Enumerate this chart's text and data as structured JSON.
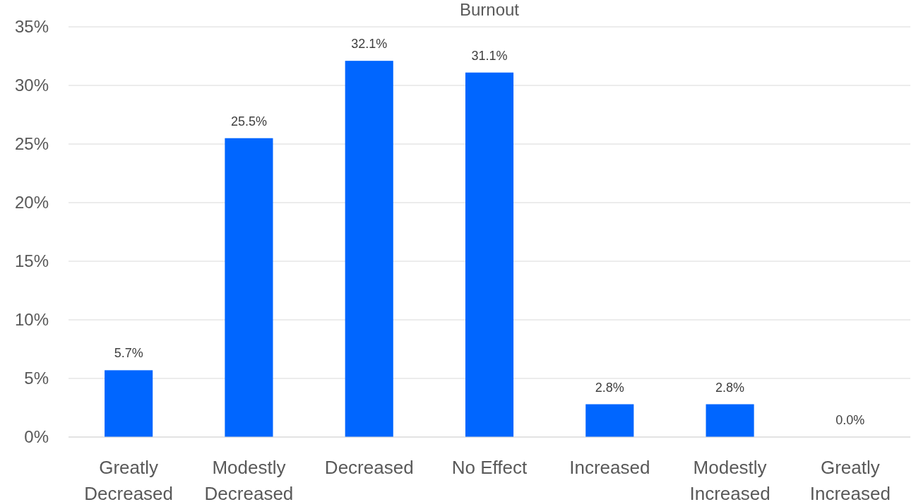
{
  "chart_data": {
    "type": "bar",
    "title": "Burnout",
    "categories": [
      "Greatly Decreased",
      "Modestly Decreased",
      "Decreased",
      "No Effect",
      "Increased",
      "Modestly Increased",
      "Greatly Increased"
    ],
    "values": [
      5.7,
      25.5,
      32.1,
      31.1,
      2.8,
      2.8,
      0.0
    ],
    "value_labels": [
      "5.7%",
      "25.5%",
      "32.1%",
      "31.1%",
      "2.8%",
      "2.8%",
      "0.0%"
    ],
    "color": "#0066ff",
    "ylim": [
      0,
      35
    ],
    "yticks": [
      {
        "value": 0,
        "label": "0%"
      },
      {
        "value": 5,
        "label": "5%"
      },
      {
        "value": 10,
        "label": "10%"
      },
      {
        "value": 15,
        "label": "15%"
      },
      {
        "value": 20,
        "label": "20%"
      },
      {
        "value": 25,
        "label": "25%"
      },
      {
        "value": 30,
        "label": "30%"
      },
      {
        "value": 35,
        "label": "35%"
      }
    ],
    "grid": "y"
  }
}
